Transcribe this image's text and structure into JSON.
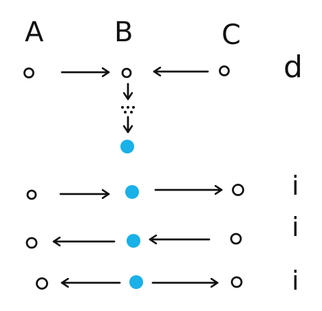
{
  "columns": [
    {
      "label": "A"
    },
    {
      "label": "B"
    },
    {
      "label": "C"
    }
  ],
  "rows": [
    {
      "label": "d"
    },
    {
      "label": "i"
    },
    {
      "label": "i"
    },
    {
      "label": "i"
    }
  ],
  "colors": {
    "ink": "#111111",
    "dot": "#1ab0e8"
  }
}
